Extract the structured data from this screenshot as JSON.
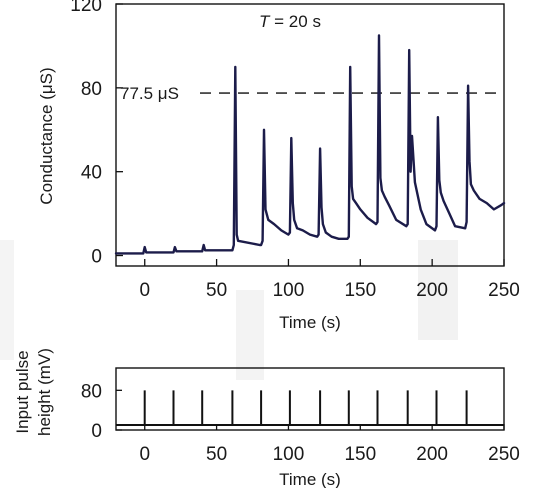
{
  "chart_data": [
    {
      "type": "line",
      "title": "",
      "annotation": {
        "prefix": "T",
        "suffix": " = 20 s"
      },
      "xlabel": "Time (s)",
      "ylabel": "Conductance (μS)",
      "xlim": [
        -20,
        250
      ],
      "ylim": [
        -5,
        120
      ],
      "xticks": [
        0,
        50,
        100,
        150,
        200,
        250
      ],
      "yticks": [
        0,
        40,
        80,
        120
      ],
      "reference_line": {
        "value": 77.5,
        "label": "77.5 μS",
        "style": "dashed"
      },
      "series": [
        {
          "color": "#1c1c4a",
          "x": [
            -20,
            -1,
            0,
            1,
            20,
            21,
            22,
            40,
            41,
            42,
            61,
            62,
            63,
            64,
            65,
            80,
            81,
            82,
            83,
            84,
            86,
            90,
            95,
            100,
            101,
            102,
            103,
            104,
            106,
            110,
            115,
            120,
            121,
            122,
            123,
            124,
            126,
            130,
            135,
            141,
            142,
            143,
            144,
            145,
            147,
            150,
            155,
            161,
            162,
            163,
            164,
            165,
            167,
            170,
            175,
            182,
            183,
            184,
            185,
            186,
            188,
            192,
            196,
            202,
            203,
            204,
            205,
            206,
            208,
            212,
            216,
            223,
            224,
            225,
            226,
            227,
            229,
            233,
            238,
            243,
            248,
            250
          ],
          "y": [
            1,
            1,
            4,
            1.5,
            1.5,
            4,
            2,
            2,
            5,
            2.5,
            2.5,
            5,
            90,
            10,
            7,
            5,
            5,
            7,
            60,
            22,
            17,
            15,
            12,
            10,
            11,
            56,
            25,
            17,
            13,
            12,
            10,
            9,
            10,
            51,
            23,
            15,
            11,
            9,
            8,
            8,
            9,
            90,
            33,
            27,
            25,
            22,
            18,
            15,
            16,
            105,
            37,
            31,
            28,
            24,
            17,
            14,
            15,
            98,
            40,
            57,
            35,
            22,
            15,
            12,
            14,
            66,
            36,
            30,
            26,
            20,
            14,
            13,
            16,
            81,
            45,
            34,
            31,
            27,
            25,
            22,
            24,
            25
          ]
        }
      ]
    },
    {
      "type": "line",
      "xlabel": "Time (s)",
      "ylabel": "Input pulse height (mV)",
      "ylabel_lines": [
        "Input pulse",
        "height (mV)"
      ],
      "xlim": [
        -20,
        250
      ],
      "ylim": [
        0,
        125
      ],
      "xticks": [
        0,
        50,
        100,
        150,
        200,
        250
      ],
      "yticks": [
        0,
        80
      ],
      "pulses": {
        "times": [
          0,
          20,
          40,
          61,
          81,
          101,
          122,
          142,
          162,
          183,
          203,
          224
        ],
        "height": 80,
        "baseline": 10
      }
    }
  ]
}
